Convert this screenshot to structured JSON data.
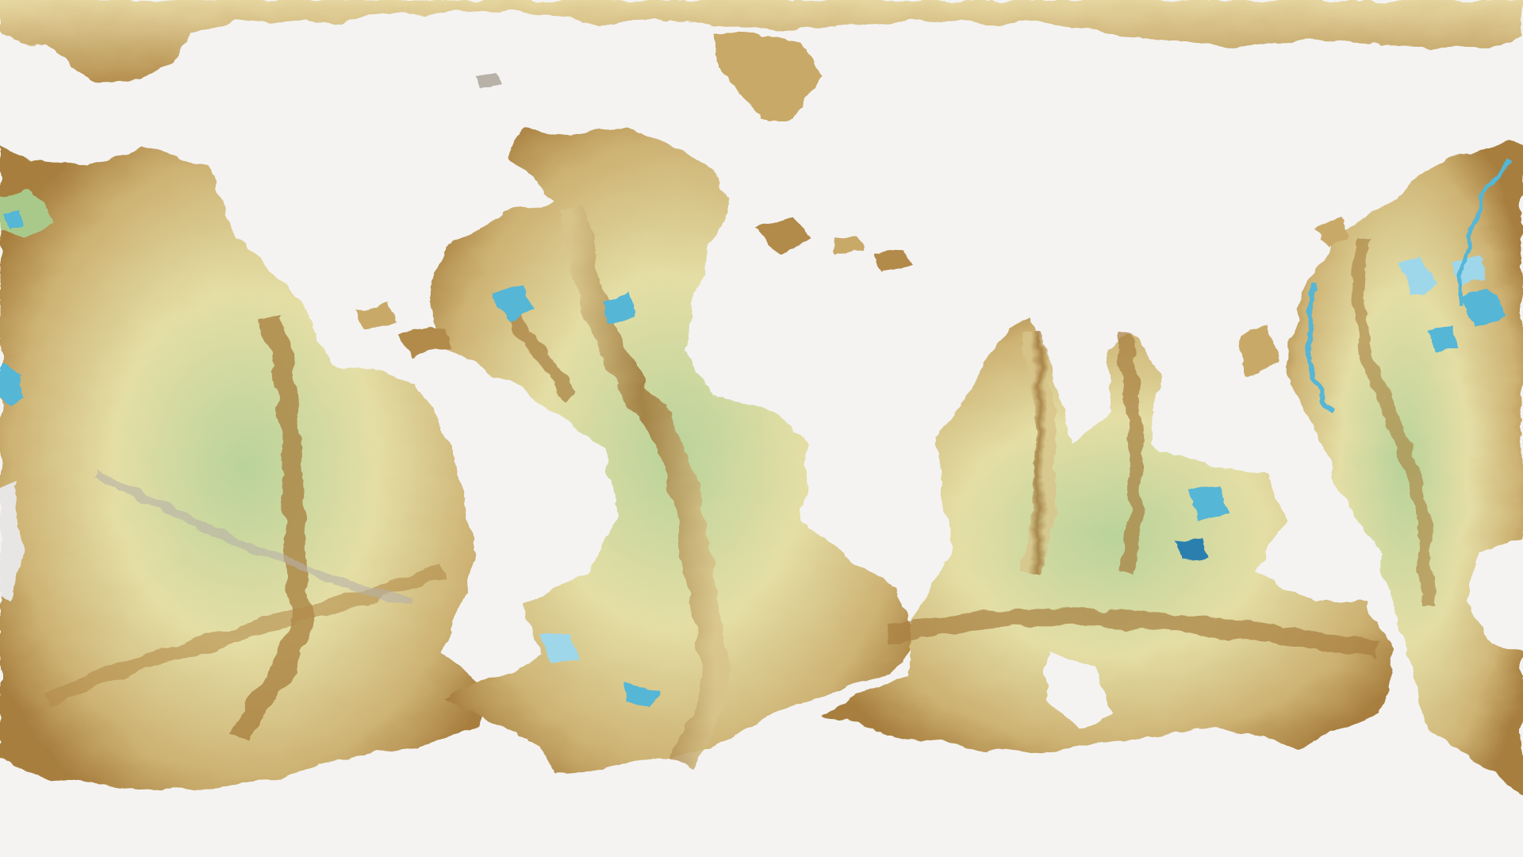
{
  "map": {
    "projection": "equirectangular",
    "theme": "inverted-world-elevation",
    "colors": {
      "background": "#f4f3f2",
      "lowland_green": "#a9c98a",
      "plain_yellow": "#e7dfa4",
      "tan": "#cdb273",
      "ridge_brown": "#a77e3e",
      "shadow_grey": "#b7b1a8",
      "basin_blue": "#55b6d6",
      "deep_basin": "#2a7fae"
    }
  }
}
